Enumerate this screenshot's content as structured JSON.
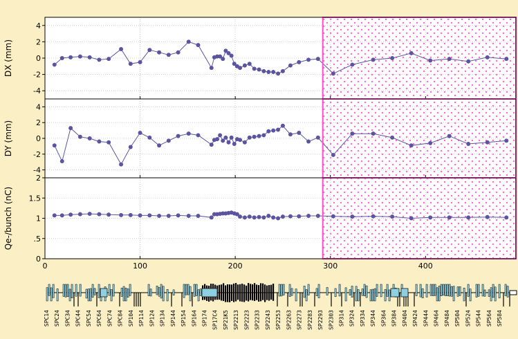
{
  "colors": {
    "background": "#fbefc6",
    "panel": "#ffffff",
    "series": "#5b55a0",
    "highlight_border": "#ff4fc8",
    "highlight_dot": "#ff66d6",
    "grid": "#c8c8c8",
    "lattice_fill": "#8ecfe0"
  },
  "chart_data": [
    {
      "type": "line",
      "ylabel": "DX (mm)",
      "ylim": [
        -5,
        5
      ],
      "yticks": [
        4,
        2,
        0,
        -2,
        -4
      ],
      "ytick_labels": [
        "4",
        "2",
        "0",
        "-2",
        "-4"
      ],
      "xlim": [
        0,
        495
      ],
      "grid": true,
      "series": [
        {
          "x": [
            10,
            18,
            27,
            37,
            47,
            57,
            67,
            80,
            90,
            100,
            110,
            120,
            130,
            140,
            151,
            161,
            175,
            178,
            181,
            184,
            187,
            190,
            193,
            196,
            199,
            202,
            205,
            210,
            215,
            220,
            225,
            230,
            235,
            240,
            245,
            250,
            258,
            267,
            277,
            287,
            303,
            323,
            345,
            365,
            385,
            405,
            425,
            445,
            465,
            485
          ],
          "y": [
            -0.8,
            0,
            0.1,
            0.2,
            0.1,
            -0.2,
            -0.1,
            1.1,
            -0.7,
            -0.5,
            1,
            0.7,
            0.4,
            0.7,
            2,
            1.6,
            -1.2,
            0.1,
            0.2,
            0.2,
            -0.1,
            0.9,
            0.6,
            0.3,
            -0.7,
            -1,
            -1.2,
            -0.9,
            -0.7,
            -1.3,
            -1.4,
            -1.6,
            -1.7,
            -1.7,
            -1.9,
            -1.6,
            -0.9,
            -0.5,
            -0.2,
            -0.1,
            -1.9,
            -0.8,
            -0.2,
            0,
            0.6,
            -0.3,
            -0.1,
            -0.4,
            0.1,
            -0.1
          ]
        }
      ]
    },
    {
      "type": "line",
      "ylabel": "DY (mm)",
      "ylim": [
        -5,
        5
      ],
      "yticks": [
        4,
        2,
        0,
        -2,
        -4
      ],
      "ytick_labels": [
        "4",
        "2",
        "0",
        "-2",
        "-4"
      ],
      "xlim": [
        0,
        495
      ],
      "grid": true,
      "series": [
        {
          "x": [
            10,
            18,
            27,
            37,
            47,
            57,
            67,
            80,
            90,
            100,
            110,
            120,
            130,
            140,
            151,
            161,
            175,
            178,
            181,
            184,
            187,
            190,
            193,
            196,
            199,
            202,
            205,
            210,
            215,
            220,
            225,
            230,
            235,
            240,
            245,
            250,
            258,
            267,
            277,
            287,
            303,
            323,
            345,
            365,
            385,
            405,
            425,
            445,
            465,
            485
          ],
          "y": [
            -0.9,
            -2.9,
            1.3,
            0.2,
            0,
            -0.4,
            -0.5,
            -3.3,
            -1.1,
            0.7,
            0.1,
            -0.9,
            -0.3,
            0.3,
            0.6,
            0.4,
            -0.8,
            -0.2,
            -0.1,
            0.4,
            -0.3,
            0.1,
            -0.5,
            0.1,
            -0.7,
            -0.1,
            -0.2,
            -0.5,
            0.1,
            0.2,
            0.3,
            0.4,
            0.9,
            1,
            1.1,
            1.6,
            0.5,
            0.7,
            -0.4,
            0.1,
            -2.1,
            0.6,
            0.6,
            0.1,
            -0.9,
            -0.6,
            0.3,
            -0.7,
            -0.5,
            -0.3
          ]
        }
      ]
    },
    {
      "type": "line",
      "ylabel": "Qe-/bunch (nC)",
      "ylim": [
        0,
        2
      ],
      "yticks": [
        2,
        1.5,
        1,
        0.5,
        0
      ],
      "ytick_labels": [
        "2",
        "1.5",
        "1",
        ".5",
        "0"
      ],
      "xlabel": "",
      "xlim": [
        0,
        495
      ],
      "xticks": [
        0,
        100,
        200,
        300,
        400
      ],
      "xtick_labels": [
        "0",
        "100",
        "200",
        "300",
        "400"
      ],
      "grid": true,
      "series": [
        {
          "x": [
            10,
            18,
            27,
            37,
            47,
            57,
            67,
            80,
            90,
            100,
            110,
            120,
            130,
            140,
            151,
            161,
            175,
            178,
            181,
            184,
            187,
            190,
            193,
            196,
            199,
            202,
            205,
            210,
            215,
            220,
            225,
            230,
            235,
            240,
            245,
            250,
            258,
            267,
            277,
            287,
            303,
            323,
            345,
            365,
            385,
            405,
            425,
            445,
            465,
            485
          ],
          "y": [
            1.07,
            1.07,
            1.09,
            1.1,
            1.11,
            1.1,
            1.09,
            1.08,
            1.08,
            1.07,
            1.07,
            1.06,
            1.06,
            1.07,
            1.06,
            1.06,
            1.02,
            1.1,
            1.1,
            1.11,
            1.12,
            1.12,
            1.13,
            1.14,
            1.12,
            1.1,
            1.04,
            1.02,
            1.04,
            1.02,
            1.03,
            1.02,
            1.06,
            1.02,
            1.0,
            1.04,
            1.05,
            1.05,
            1.06,
            1.06,
            1.05,
            1.04,
            1.05,
            1.04,
            1.0,
            1.02,
            1.02,
            1.02,
            1.03,
            1.02
          ]
        }
      ]
    }
  ],
  "highlight_region": {
    "x_start": 292,
    "x_end": 495
  },
  "lattice_labels": [
    "SPC14",
    "SPC24",
    "SPC34",
    "SPC44",
    "SPC54",
    "SPC64",
    "SPC74",
    "SPC84",
    "SP104",
    "SP114",
    "SP124",
    "SP134",
    "SP144",
    "SP154",
    "SP164",
    "SP174",
    "SP17C4",
    "SP21K5",
    "SP2213",
    "SP2223",
    "SP2233",
    "SP2243",
    "SP2253",
    "SP2263",
    "SP2273",
    "SP2283",
    "SP2293",
    "SP2303",
    "SP314",
    "SP324",
    "SP334",
    "SP344",
    "SP364",
    "SP384",
    "SP404",
    "SP424",
    "SP444",
    "SP464",
    "SP484",
    "SP504",
    "SP524",
    "SP544",
    "SP564",
    "SP584"
  ]
}
